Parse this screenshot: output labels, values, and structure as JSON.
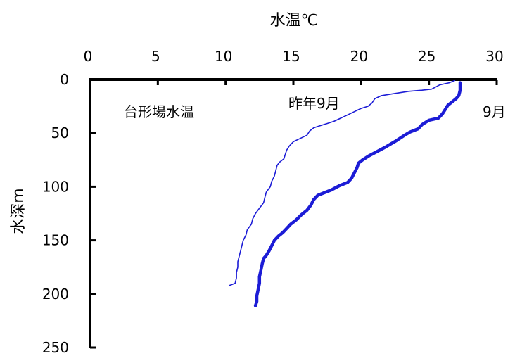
{
  "chart_data": {
    "type": "line",
    "title": "台形場水温",
    "xlabel": "水温℃",
    "ylabel": "水深m",
    "xaxis_position": "top",
    "y_inverted": true,
    "xlim": [
      0,
      30
    ],
    "ylim": [
      0,
      250
    ],
    "xticks": [
      0,
      5,
      10,
      15,
      20,
      25,
      30
    ],
    "yticks": [
      0,
      50,
      100,
      150,
      200,
      250
    ],
    "grid": false,
    "colors": {
      "axis": "#000000",
      "series": "#1c1cd6"
    },
    "series": [
      {
        "name": "昨年9月",
        "line_width": "thin",
        "points": [
          [
            26.9,
            1
          ],
          [
            26.5,
            3
          ],
          [
            25.8,
            5
          ],
          [
            25.5,
            7
          ],
          [
            25.2,
            9
          ],
          [
            24.5,
            10
          ],
          [
            23.5,
            11
          ],
          [
            22.5,
            13
          ],
          [
            21.5,
            15
          ],
          [
            21.0,
            18
          ],
          [
            20.8,
            22
          ],
          [
            20.5,
            25
          ],
          [
            20.0,
            27
          ],
          [
            19.5,
            30
          ],
          [
            19.0,
            33
          ],
          [
            18.5,
            36
          ],
          [
            18.0,
            39
          ],
          [
            17.5,
            41
          ],
          [
            17.0,
            43
          ],
          [
            16.5,
            45
          ],
          [
            16.2,
            48
          ],
          [
            16.0,
            52
          ],
          [
            15.5,
            55
          ],
          [
            15.0,
            58
          ],
          [
            14.7,
            62
          ],
          [
            14.5,
            66
          ],
          [
            14.4,
            70
          ],
          [
            14.3,
            74
          ],
          [
            14.0,
            77
          ],
          [
            13.8,
            80
          ],
          [
            13.7,
            85
          ],
          [
            13.6,
            90
          ],
          [
            13.4,
            95
          ],
          [
            13.3,
            100
          ],
          [
            13.0,
            105
          ],
          [
            12.9,
            110
          ],
          [
            12.8,
            115
          ],
          [
            12.5,
            120
          ],
          [
            12.2,
            125
          ],
          [
            12.0,
            130
          ],
          [
            11.9,
            135
          ],
          [
            11.6,
            140
          ],
          [
            11.5,
            145
          ],
          [
            11.3,
            150
          ],
          [
            11.2,
            155
          ],
          [
            11.1,
            160
          ],
          [
            11.0,
            165
          ],
          [
            10.9,
            170
          ],
          [
            10.9,
            175
          ],
          [
            10.8,
            180
          ],
          [
            10.8,
            185
          ],
          [
            10.7,
            190
          ],
          [
            10.3,
            192
          ]
        ]
      },
      {
        "name": "9月",
        "line_width": "thick",
        "points": [
          [
            27.3,
            3
          ],
          [
            27.3,
            6
          ],
          [
            27.3,
            10
          ],
          [
            27.2,
            15
          ],
          [
            27.0,
            18
          ],
          [
            26.7,
            21
          ],
          [
            26.4,
            24
          ],
          [
            26.2,
            28
          ],
          [
            26.0,
            32
          ],
          [
            25.7,
            36
          ],
          [
            25.0,
            38
          ],
          [
            24.5,
            42
          ],
          [
            24.2,
            46
          ],
          [
            23.6,
            49
          ],
          [
            23.2,
            52
          ],
          [
            22.6,
            57
          ],
          [
            22.2,
            60
          ],
          [
            21.8,
            63
          ],
          [
            21.2,
            67
          ],
          [
            20.6,
            71
          ],
          [
            20.1,
            75
          ],
          [
            19.8,
            78
          ],
          [
            19.7,
            82
          ],
          [
            19.5,
            87
          ],
          [
            19.3,
            92
          ],
          [
            19.0,
            96
          ],
          [
            18.4,
            99
          ],
          [
            17.8,
            103
          ],
          [
            17.2,
            106
          ],
          [
            16.8,
            108
          ],
          [
            16.5,
            112
          ],
          [
            16.3,
            117
          ],
          [
            16.0,
            122
          ],
          [
            15.6,
            126
          ],
          [
            15.2,
            131
          ],
          [
            14.8,
            135
          ],
          [
            14.5,
            139
          ],
          [
            14.2,
            143
          ],
          [
            13.9,
            146
          ],
          [
            13.6,
            150
          ],
          [
            13.4,
            155
          ],
          [
            13.2,
            160
          ],
          [
            13.0,
            164
          ],
          [
            12.8,
            167
          ],
          [
            12.7,
            172
          ],
          [
            12.6,
            178
          ],
          [
            12.5,
            184
          ],
          [
            12.5,
            190
          ],
          [
            12.4,
            196
          ],
          [
            12.3,
            202
          ],
          [
            12.3,
            207
          ],
          [
            12.2,
            211
          ]
        ]
      }
    ]
  }
}
